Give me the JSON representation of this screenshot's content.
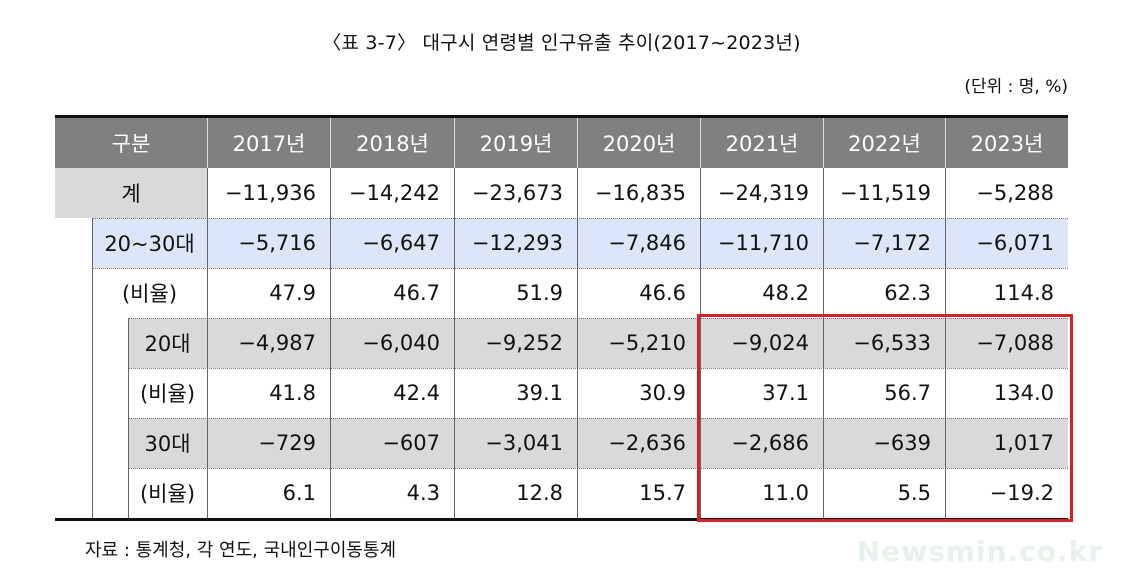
{
  "title": "〈표 3-7〉 대구시 연령별 인구유출 추이(2017~2023년)",
  "unit": "(단위 : 명, %)",
  "header": {
    "label": "구분",
    "years": [
      "2017년",
      "2018년",
      "2019년",
      "2020년",
      "2021년",
      "2022년",
      "2023년"
    ]
  },
  "rows": [
    {
      "label": "계",
      "values": [
        "−11,936",
        "−14,242",
        "−23,673",
        "−16,835",
        "−24,319",
        "−11,519",
        "−5,288"
      ]
    },
    {
      "label": "20~30대",
      "values": [
        "−5,716",
        "−6,647",
        "−12,293",
        "−7,846",
        "−11,710",
        "−7,172",
        "−6,071"
      ]
    },
    {
      "label": "(비율)",
      "values": [
        "47.9",
        "46.7",
        "51.9",
        "46.6",
        "48.2",
        "62.3",
        "114.8"
      ]
    },
    {
      "label": "20대",
      "values": [
        "−4,987",
        "−6,040",
        "−9,252",
        "−5,210",
        "−9,024",
        "−6,533",
        "−7,088"
      ]
    },
    {
      "label": "(비율)",
      "values": [
        "41.8",
        "42.4",
        "39.1",
        "30.9",
        "37.1",
        "56.7",
        "134.0"
      ]
    },
    {
      "label": "30대",
      "values": [
        "−729",
        "−607",
        "−3,041",
        "−2,636",
        "−2,686",
        "−639",
        "1,017"
      ]
    },
    {
      "label": "(비율)",
      "values": [
        "6.1",
        "4.3",
        "12.8",
        "15.7",
        "11.0",
        "5.5",
        "−19.2"
      ]
    }
  ],
  "source": "자료 : 통계청, 각 연도, 국내인구이동통계",
  "watermark": "Newsmin.co.kr",
  "colors": {
    "header_bg": "#808080",
    "total_bg": "#d9d9d9",
    "age2030_bg": "#dce6f8",
    "age_group_bg": "#d9d9d9",
    "highlight_border": "#d2232a"
  }
}
